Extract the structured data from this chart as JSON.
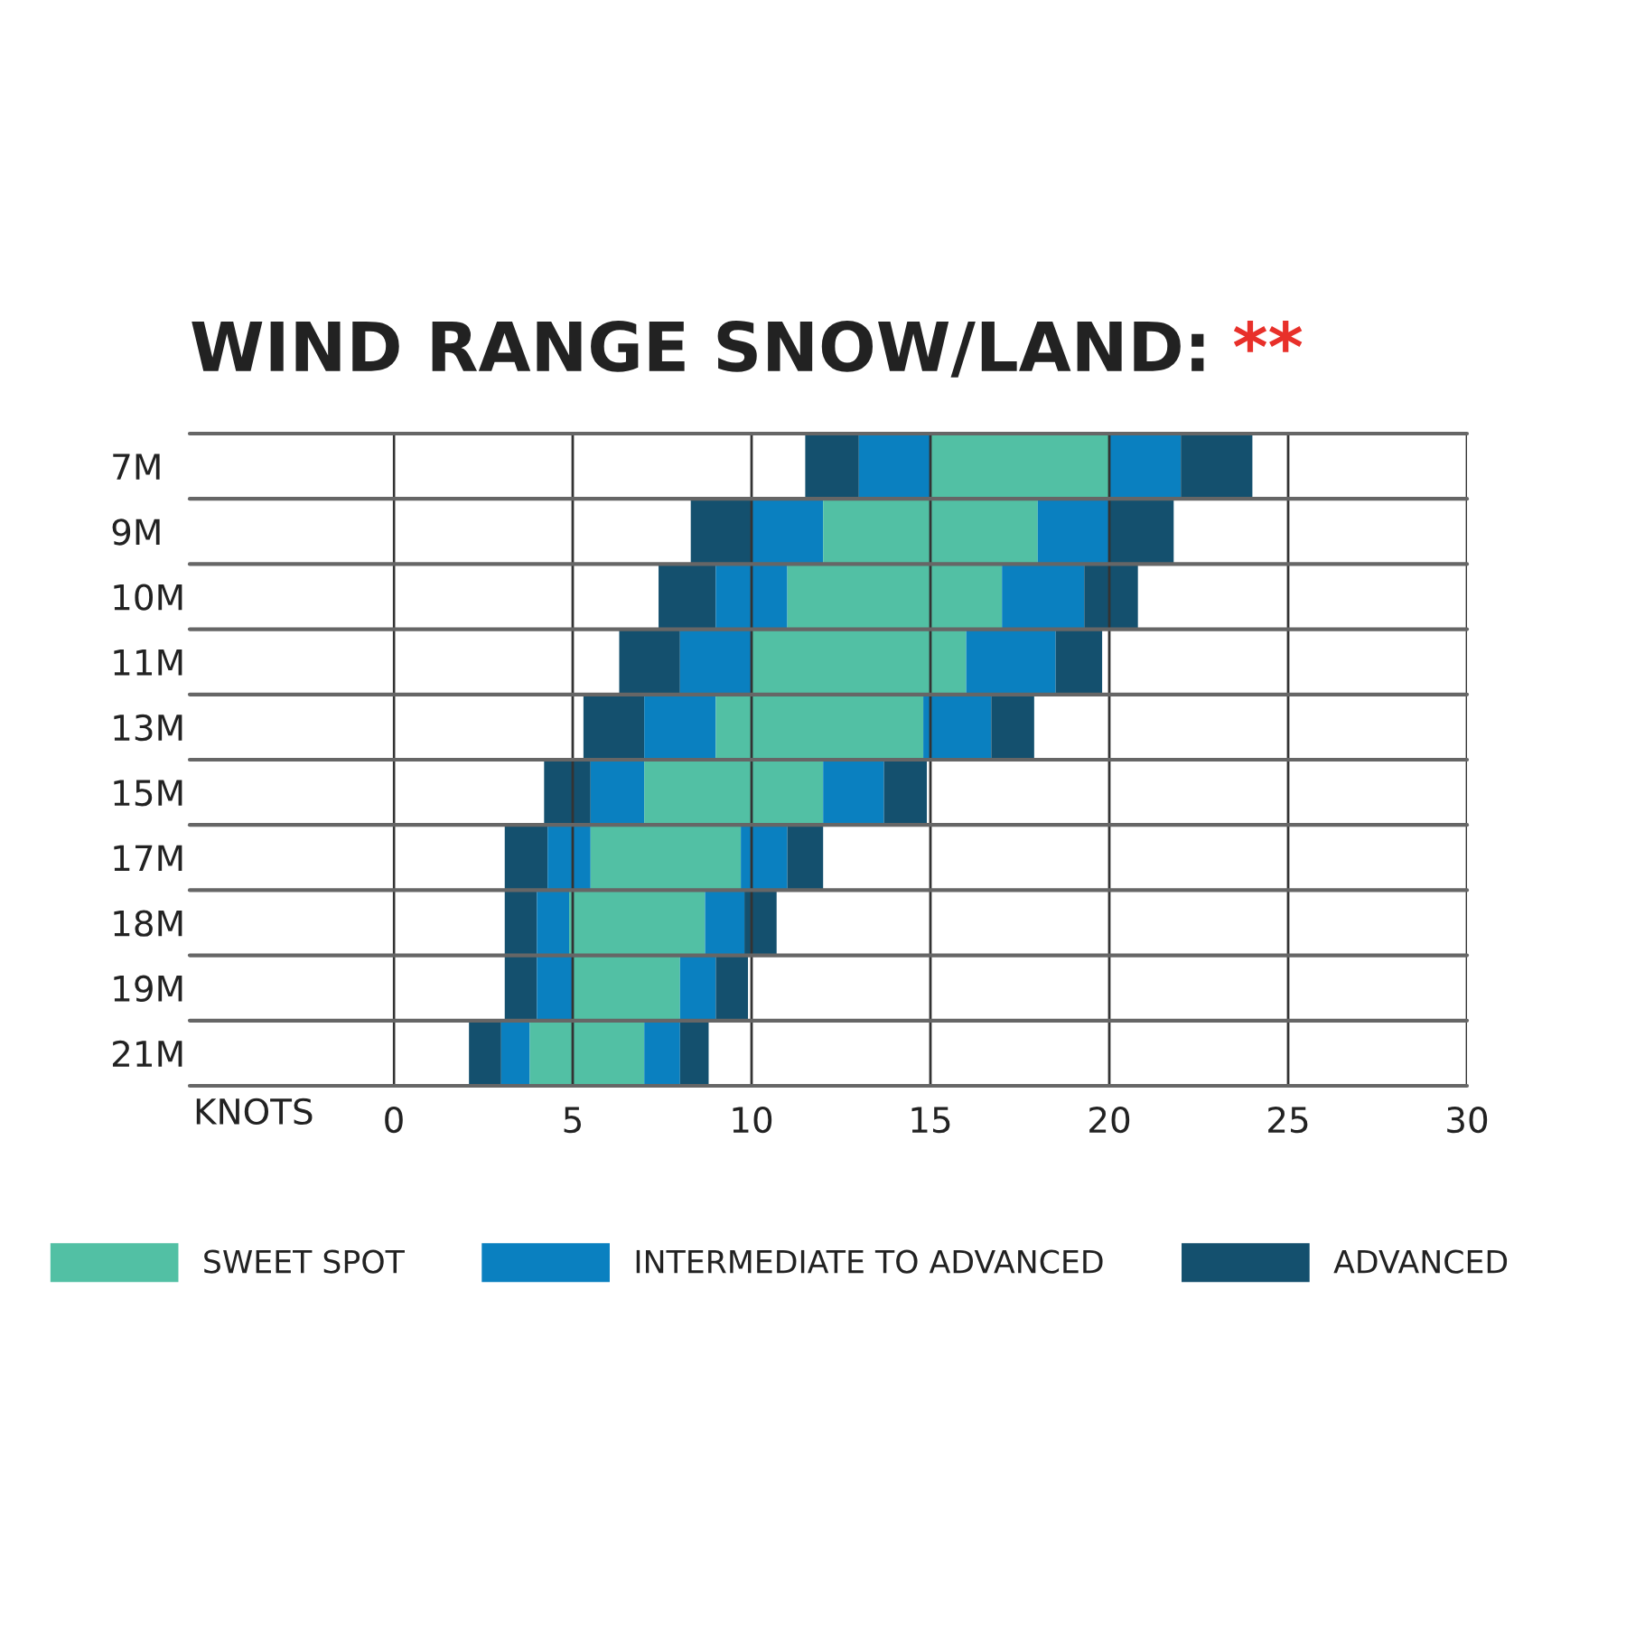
{
  "chart_data": {
    "type": "bar",
    "orientation": "horizontal",
    "title": "WIND RANGE SNOW/LAND:",
    "annotations": [
      "**"
    ],
    "xlabel": "KNOTS",
    "categories": [
      "7M",
      "9M",
      "10M",
      "11M",
      "13M",
      "15M",
      "17M",
      "18M",
      "19M",
      "21M"
    ],
    "series": [
      {
        "name": "ADVANCED",
        "color": "#14506e",
        "base": [
          11.5,
          8.3,
          7.4,
          6.3,
          5.3,
          4.2,
          3.1,
          3.1,
          3.1,
          2.1
        ],
        "values": [
          1.5,
          1.7,
          1.6,
          1.7,
          1.7,
          1.3,
          1.2,
          0.9,
          0.9,
          0.9
        ]
      },
      {
        "name": "INTERMEDIATE TO ADVANCED",
        "color": "#0a80c0",
        "base": [
          13,
          10,
          9,
          8,
          7,
          5.5,
          4.3,
          4,
          4,
          3
        ],
        "values": [
          2,
          2,
          2,
          2,
          2,
          1.5,
          1.2,
          0.9,
          1,
          0.8
        ]
      },
      {
        "name": "SWEET SPOT",
        "color": "#52c0a4",
        "base": [
          15,
          12,
          11,
          10,
          9,
          7,
          5.5,
          4.9,
          5,
          3.8
        ],
        "values": [
          5,
          6,
          6,
          6,
          5.8,
          5,
          4.2,
          3.8,
          3,
          3.2
        ]
      },
      {
        "color": "#0a80c0",
        "base": [
          20,
          18,
          17,
          16,
          14.8,
          12,
          9.7,
          8.7,
          8,
          7
        ],
        "values": [
          2,
          2,
          2.3,
          2.5,
          1.9,
          1.7,
          1.3,
          1.1,
          1,
          1
        ]
      },
      {
        "color": "#14506e",
        "base": [
          22,
          20,
          19.3,
          18.5,
          16.7,
          13.7,
          11,
          9.8,
          9,
          8
        ],
        "values": [
          2,
          1.8,
          1.5,
          1.3,
          1.2,
          1.2,
          1,
          0.9,
          0.9,
          0.8
        ]
      }
    ],
    "xlim": [
      0,
      30
    ],
    "xticks": [
      0,
      5,
      10,
      15,
      20,
      25,
      30
    ],
    "grid": "x",
    "legend": "bottom"
  }
}
